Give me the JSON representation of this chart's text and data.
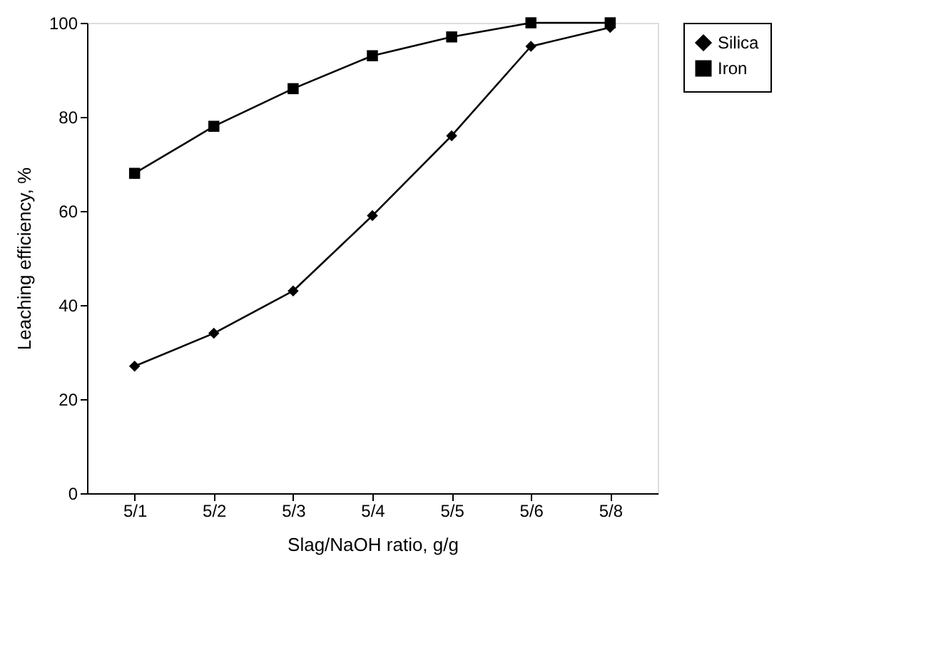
{
  "chart_data": {
    "type": "line",
    "xlabel": "Slag/NaOH ratio, g/g",
    "ylabel": "Leaching efficiency, %",
    "categories": [
      "5/1",
      "5/2",
      "5/3",
      "5/4",
      "5/5",
      "5/6",
      "5/8"
    ],
    "series": [
      {
        "name": "Silica",
        "color": "#000000",
        "marker": "diamond",
        "values": [
          27,
          34,
          43,
          59,
          76,
          95,
          99
        ]
      },
      {
        "name": "Iron",
        "color": "#000000",
        "marker": "square",
        "values": [
          68,
          78,
          86,
          93,
          97,
          100,
          100
        ]
      }
    ],
    "ylim": [
      0,
      100
    ],
    "yticks": [
      0,
      20,
      40,
      60,
      80,
      100
    ],
    "grid": false,
    "legend": "right",
    "line_style": "solid"
  }
}
